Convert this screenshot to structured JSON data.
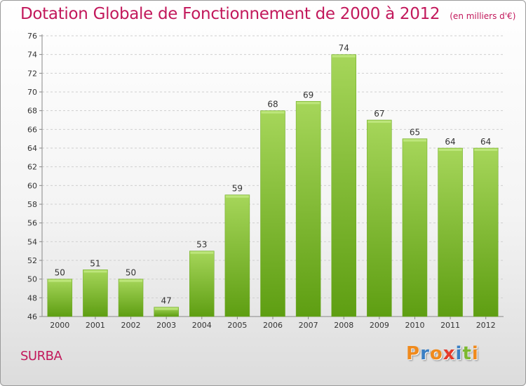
{
  "header": {
    "title": "Dotation Globale de Fonctionnement de 2000 à 2012",
    "unit": "(en milliers d'€)"
  },
  "footer": {
    "place": "SURBA",
    "logo": "Proxiti"
  },
  "colors": {
    "title": "#c2185b",
    "bar_light": "#a6d65a",
    "bar_dark": "#5e9e12",
    "logo_letters": [
      "#f08a1c",
      "#3a7fc4",
      "#f08a1c",
      "#e53a2a",
      "#3a7fc4",
      "#7cb82f",
      "#f08a1c"
    ]
  },
  "chart_data": {
    "type": "bar",
    "categories": [
      "2000",
      "2001",
      "2002",
      "2003",
      "2004",
      "2005",
      "2006",
      "2007",
      "2008",
      "2009",
      "2010",
      "2011",
      "2012"
    ],
    "values": [
      50,
      51,
      50,
      47,
      53,
      59,
      68,
      69,
      74,
      67,
      65,
      64,
      64
    ],
    "data_labels": [
      "50",
      "51",
      "50",
      "47",
      "53",
      "59",
      "68",
      "69",
      "74",
      "67",
      "65",
      "64",
      "64"
    ],
    "ylim": [
      46,
      76
    ],
    "yticks": [
      46,
      48,
      50,
      52,
      54,
      56,
      58,
      60,
      62,
      64,
      66,
      68,
      70,
      72,
      74,
      76
    ],
    "grid": true
  }
}
